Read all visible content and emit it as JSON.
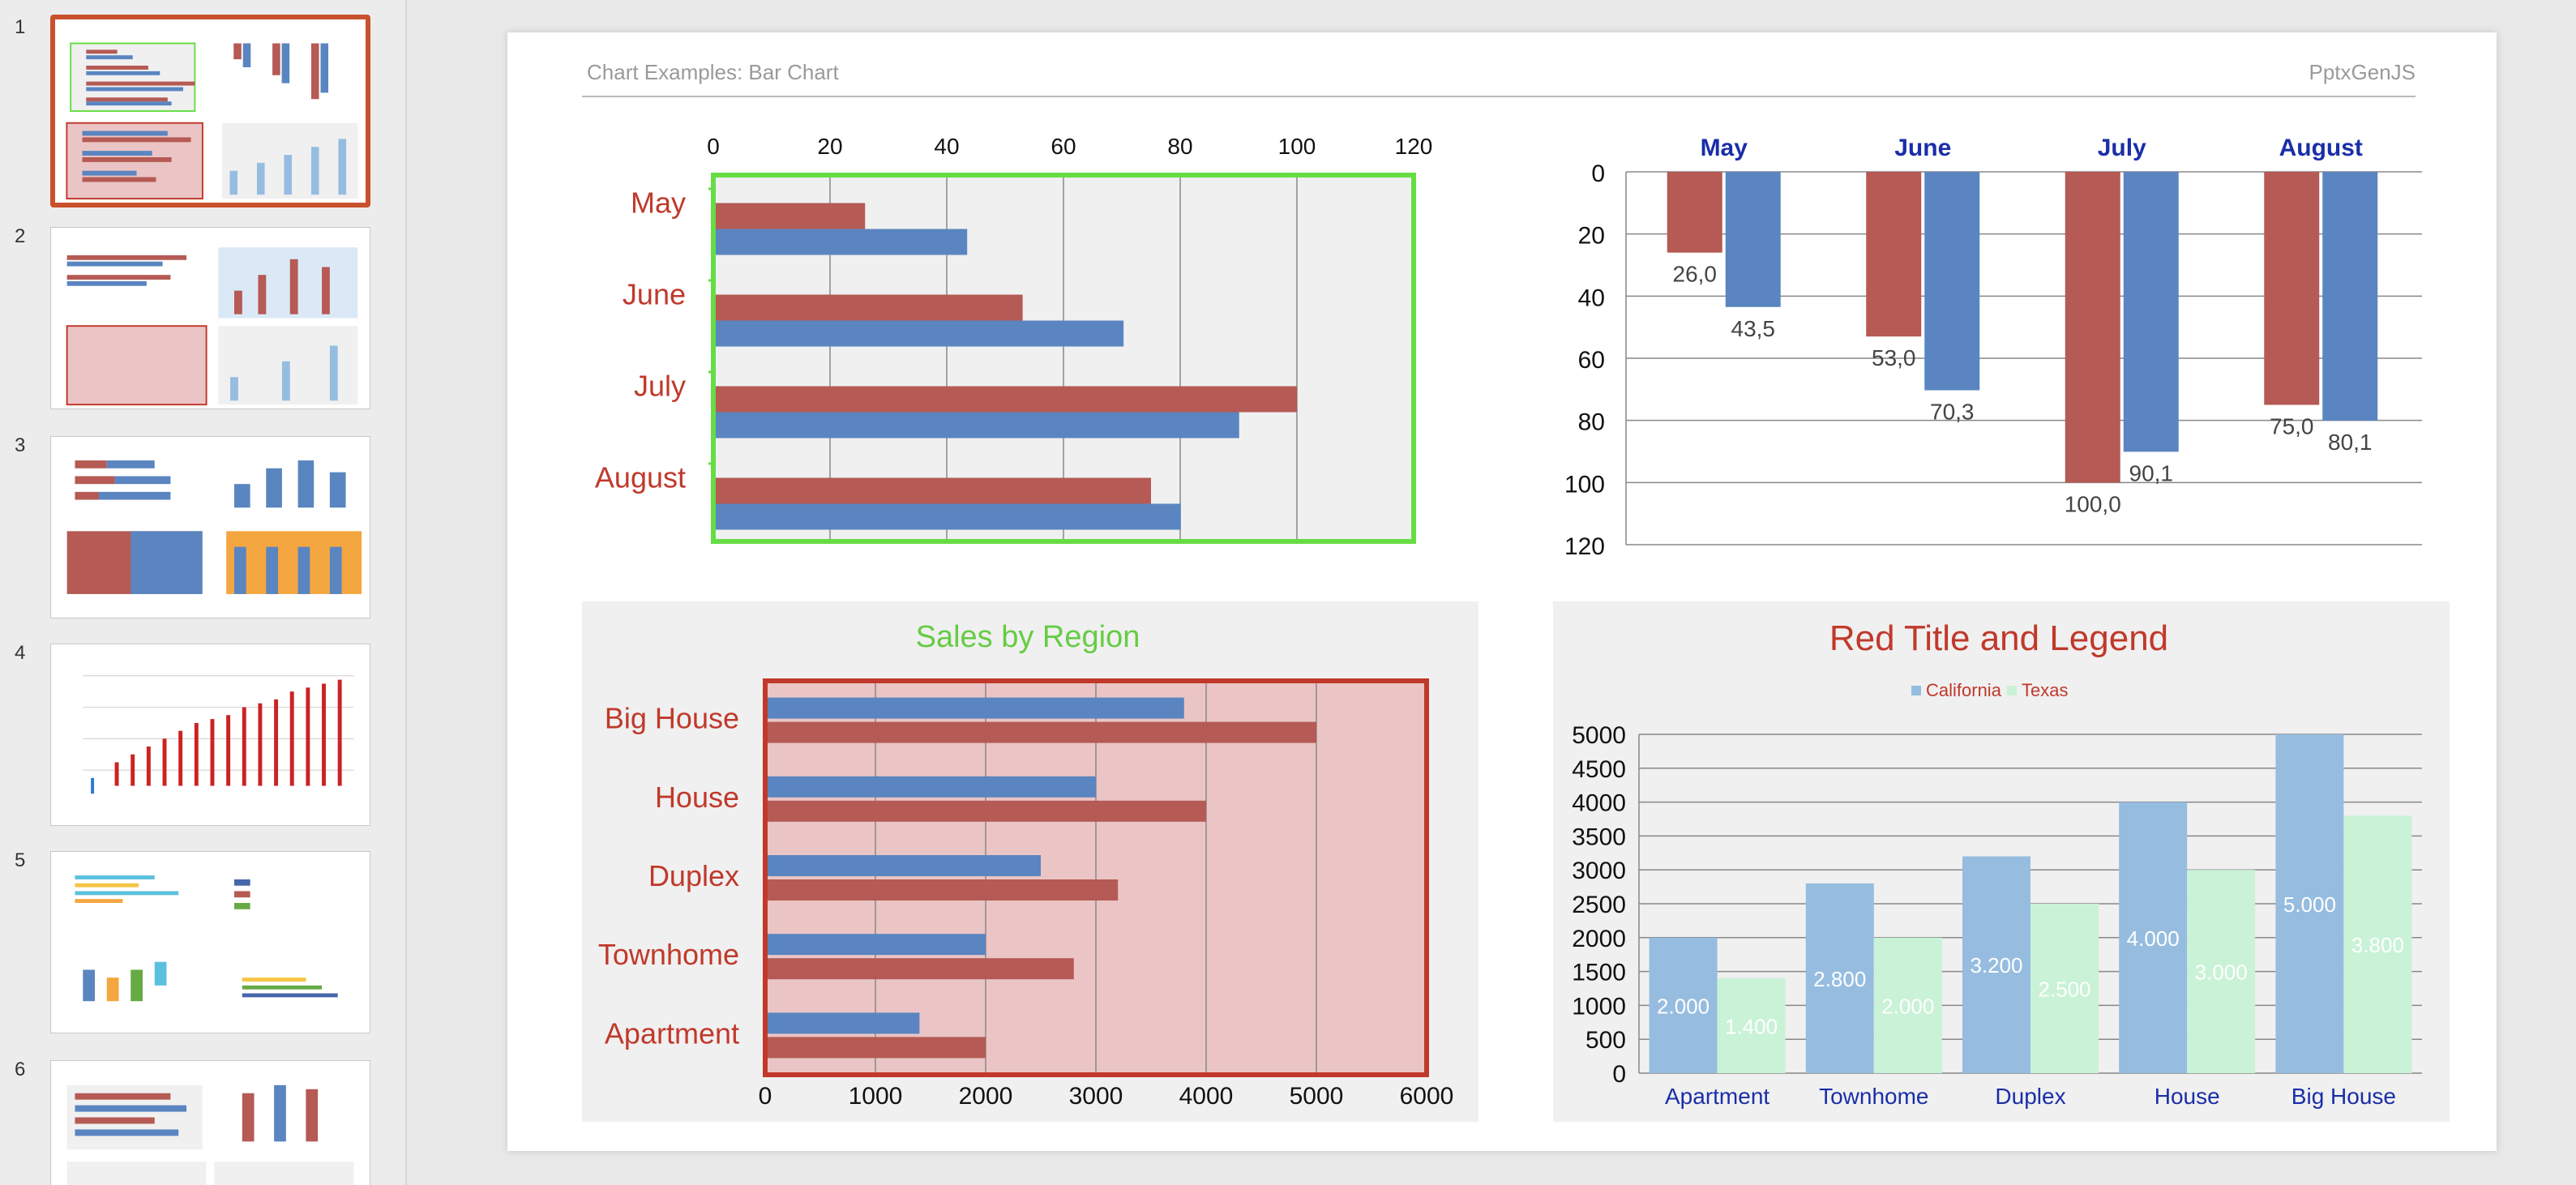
{
  "sidebar": {
    "thumbnails": [
      {
        "number": "1",
        "selected": true
      },
      {
        "number": "2",
        "selected": false
      },
      {
        "number": "3",
        "selected": false
      },
      {
        "number": "4",
        "selected": false
      },
      {
        "number": "5",
        "selected": false
      },
      {
        "number": "6",
        "selected": false
      }
    ]
  },
  "slide": {
    "title": "Chart Examples: Bar Chart",
    "brand": "PptxGenJS"
  },
  "colors": {
    "red_bar": "#b55a54",
    "blue_bar": "#5a85c0",
    "green_border": "#66dd44",
    "red_border": "#c0392b",
    "legend_blue": "#96bde0",
    "legend_green": "#c9f2d6",
    "label_red": "#c0392b",
    "label_navy": "#1a2ea8",
    "sales_title_green": "#66cc44",
    "chart_bg": "#f0f0f0",
    "pink_plot": "#ebc5c5"
  },
  "chart_data": [
    {
      "type": "bar",
      "orientation": "horizontal",
      "categories": [
        "May",
        "June",
        "July",
        "August"
      ],
      "series": [
        {
          "values": [
            26,
            53,
            100,
            75
          ]
        },
        {
          "values": [
            43.5,
            70.3,
            90.1,
            80.1
          ]
        }
      ],
      "xlim": [
        0,
        120
      ],
      "ticks": [
        "0",
        "20",
        "40",
        "60",
        "80",
        "100",
        "120"
      ],
      "axis_position": "top",
      "grid": true
    },
    {
      "type": "bar",
      "orientation": "vertical-inverted",
      "categories": [
        "May",
        "June",
        "July",
        "August"
      ],
      "series": [
        {
          "values": [
            26.0,
            53.0,
            100.0,
            75.0
          ],
          "labels": [
            "26,0",
            "53,0",
            "100,0",
            "75,0"
          ]
        },
        {
          "values": [
            43.5,
            70.3,
            90.1,
            80.1
          ],
          "labels": [
            "43,5",
            "70,3",
            "90,1",
            "80,1"
          ]
        }
      ],
      "ylim": [
        0,
        120
      ],
      "ticks": [
        "0",
        "20",
        "40",
        "60",
        "80",
        "100",
        "120"
      ],
      "grid": true
    },
    {
      "type": "bar",
      "orientation": "horizontal",
      "title": "Sales by Region",
      "categories": [
        "Big House",
        "House",
        "Duplex",
        "Townhome",
        "Apartment"
      ],
      "series": [
        {
          "values": [
            3800,
            3000,
            2500,
            2000,
            1400
          ]
        },
        {
          "values": [
            5000,
            4000,
            3200,
            2800,
            2000
          ]
        }
      ],
      "xlim": [
        0,
        6000
      ],
      "ticks": [
        "0",
        "1000",
        "2000",
        "3000",
        "4000",
        "5000",
        "6000"
      ],
      "grid": true
    },
    {
      "type": "bar",
      "orientation": "vertical",
      "title": "Red Title and Legend",
      "legend_position": "top",
      "categories": [
        "Apartment",
        "Townhome",
        "Duplex",
        "House",
        "Big House"
      ],
      "series": [
        {
          "name": "California",
          "values": [
            2000,
            2800,
            3200,
            4000,
            5000
          ],
          "labels": [
            "2.000",
            "2.800",
            "3.200",
            "4.000",
            "5.000"
          ]
        },
        {
          "name": "Texas",
          "values": [
            1400,
            2000,
            2500,
            3000,
            3800
          ],
          "labels": [
            "1.400",
            "2.000",
            "2.500",
            "3.000",
            "3.800"
          ]
        }
      ],
      "ylim": [
        0,
        5000
      ],
      "ticks": [
        "0",
        "500",
        "1000",
        "1500",
        "2000",
        "2500",
        "3000",
        "3500",
        "4000",
        "4500",
        "5000"
      ],
      "grid": true
    }
  ]
}
